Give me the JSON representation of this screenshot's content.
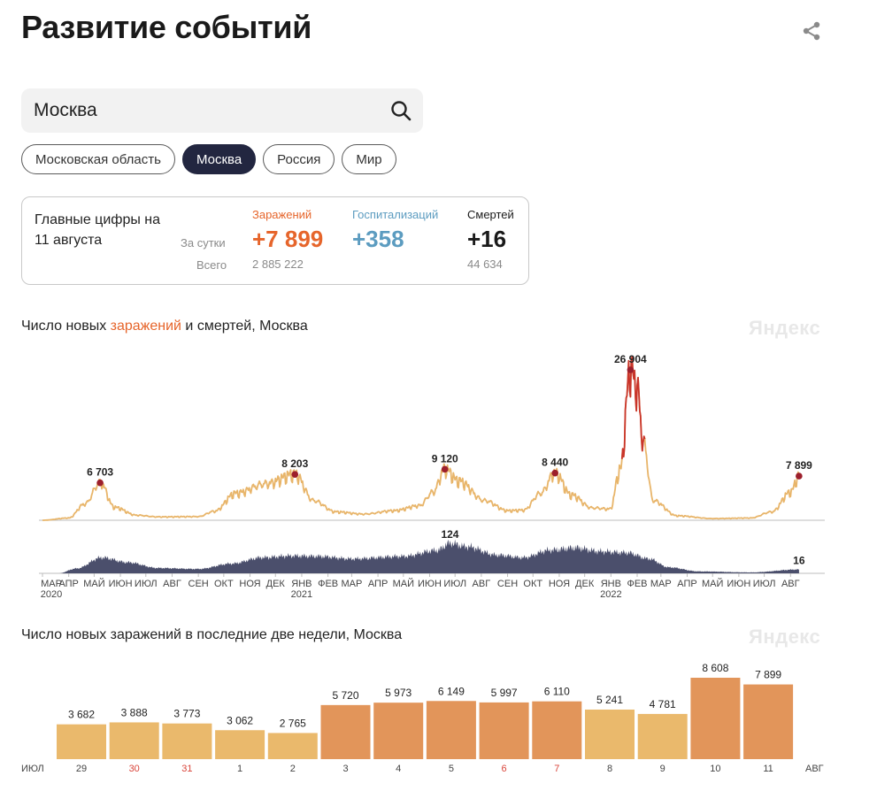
{
  "header": {
    "title": "Развитие событий"
  },
  "search": {
    "value": "Москва"
  },
  "regions": [
    {
      "label": "Московская область",
      "active": false
    },
    {
      "label": "Москва",
      "active": true
    },
    {
      "label": "Россия",
      "active": false
    },
    {
      "label": "Мир",
      "active": false
    }
  ],
  "summary": {
    "title": "Главные цифры на 11 августа",
    "row_day_label": "За сутки",
    "row_total_label": "Всего",
    "cases": {
      "label": "Заражений",
      "day": "+7 899",
      "total": "2 885 222",
      "color": "#e6652b"
    },
    "hosp": {
      "label": "Госпитализаций",
      "day": "+358",
      "total": "",
      "color": "#5c9cc0"
    },
    "deaths": {
      "label": "Смертей",
      "day": "+16",
      "total": "44 634",
      "color": "#1a1a1a"
    }
  },
  "chart1": {
    "title_pre": "Число новых ",
    "title_hl": "заражений",
    "title_post": " и смертей, Москва",
    "watermark": "Яндекс"
  },
  "chart2": {
    "title": "Число новых заражений в последние две недели, Москва",
    "watermark": "Яндекс"
  },
  "chart_data": [
    {
      "type": "line",
      "title": "Число новых заражений и смертей, Москва",
      "x_unit": "month",
      "x_range": [
        "2020-03",
        "2022-08-11"
      ],
      "series": [
        {
          "name": "заражений",
          "color": "#e8b56a",
          "peak_color": "#c9342a",
          "keypoints": [
            [
              "2020-03-01",
              0
            ],
            [
              "2020-04-01",
              400
            ],
            [
              "2020-04-20",
              2900
            ],
            [
              "2020-05-08",
              6703
            ],
            [
              "2020-05-25",
              2300
            ],
            [
              "2020-06-20",
              900
            ],
            [
              "2020-07-15",
              600
            ],
            [
              "2020-09-01",
              650
            ],
            [
              "2020-09-20",
              1600
            ],
            [
              "2020-10-15",
              4800
            ],
            [
              "2020-11-20",
              6500
            ],
            [
              "2020-12-24",
              8203
            ],
            [
              "2021-01-15",
              3500
            ],
            [
              "2021-02-10",
              1500
            ],
            [
              "2021-03-15",
              1100
            ],
            [
              "2021-04-20",
              1700
            ],
            [
              "2021-05-20",
              2600
            ],
            [
              "2021-06-05",
              5000
            ],
            [
              "2021-06-19",
              9120
            ],
            [
              "2021-07-05",
              7000
            ],
            [
              "2021-08-05",
              3500
            ],
            [
              "2021-09-01",
              1700
            ],
            [
              "2021-09-20",
              1800
            ],
            [
              "2021-10-10",
              4800
            ],
            [
              "2021-10-27",
              8440
            ],
            [
              "2021-11-15",
              4500
            ],
            [
              "2021-12-10",
              2200
            ],
            [
              "2021-12-31",
              2000
            ],
            [
              "2022-01-12",
              9000
            ],
            [
              "2022-01-24",
              26904
            ],
            [
              "2022-02-01",
              23500
            ],
            [
              "2022-02-08",
              14000
            ],
            [
              "2022-02-20",
              3500
            ],
            [
              "2022-03-20",
              800
            ],
            [
              "2022-05-01",
              300
            ],
            [
              "2022-06-15",
              400
            ],
            [
              "2022-07-10",
              1500
            ],
            [
              "2022-08-01",
              5000
            ],
            [
              "2022-08-11",
              7899
            ]
          ],
          "peaks": [
            {
              "date": "2020-05-08",
              "value": 6703,
              "label": "6 703"
            },
            {
              "date": "2020-12-24",
              "value": 8203,
              "label": "8 203"
            },
            {
              "date": "2021-06-19",
              "value": 9120,
              "label": "9 120"
            },
            {
              "date": "2021-10-27",
              "value": 8440,
              "label": "8 440"
            },
            {
              "date": "2022-01-24",
              "value": 26904,
              "label": "26 904"
            },
            {
              "date": "2022-08-11",
              "value": 7899,
              "label": "7 899"
            }
          ]
        },
        {
          "name": "смертей",
          "color": "#4b4f6c",
          "keypoints": [
            [
              "2020-03-20",
              0
            ],
            [
              "2020-04-10",
              20
            ],
            [
              "2020-05-10",
              65
            ],
            [
              "2020-06-10",
              45
            ],
            [
              "2020-07-15",
              22
            ],
            [
              "2020-09-01",
              18
            ],
            [
              "2020-10-10",
              40
            ],
            [
              "2020-11-15",
              65
            ],
            [
              "2020-12-20",
              72
            ],
            [
              "2021-01-20",
              70
            ],
            [
              "2021-03-01",
              60
            ],
            [
              "2021-05-01",
              70
            ],
            [
              "2021-06-10",
              95
            ],
            [
              "2021-06-25",
              124
            ],
            [
              "2021-07-15",
              110
            ],
            [
              "2021-08-20",
              75
            ],
            [
              "2021-09-20",
              65
            ],
            [
              "2021-10-20",
              95
            ],
            [
              "2021-11-20",
              105
            ],
            [
              "2021-12-20",
              90
            ],
            [
              "2022-01-20",
              85
            ],
            [
              "2022-02-15",
              60
            ],
            [
              "2022-03-10",
              25
            ],
            [
              "2022-04-15",
              8
            ],
            [
              "2022-06-15",
              4
            ],
            [
              "2022-08-11",
              16
            ]
          ],
          "peaks": [
            {
              "date": "2021-06-25",
              "value": 124,
              "label": "124"
            },
            {
              "date": "2022-08-11",
              "value": 16,
              "label": "16"
            }
          ]
        }
      ],
      "x_ticks": [
        {
          "label": "МАР",
          "date": "2020-03-01",
          "year": "2020"
        },
        {
          "label": "АПР",
          "date": "2020-04-01"
        },
        {
          "label": "МАЙ",
          "date": "2020-05-01"
        },
        {
          "label": "ИЮН",
          "date": "2020-06-01"
        },
        {
          "label": "ИЮЛ",
          "date": "2020-07-01"
        },
        {
          "label": "АВГ",
          "date": "2020-08-01"
        },
        {
          "label": "СЕН",
          "date": "2020-09-01"
        },
        {
          "label": "ОКТ",
          "date": "2020-10-01"
        },
        {
          "label": "НОЯ",
          "date": "2020-11-01"
        },
        {
          "label": "ДЕК",
          "date": "2020-12-01"
        },
        {
          "label": "ЯНВ",
          "date": "2021-01-01",
          "year": "2021"
        },
        {
          "label": "ФЕВ",
          "date": "2021-02-01"
        },
        {
          "label": "МАР",
          "date": "2021-03-01"
        },
        {
          "label": "АПР",
          "date": "2021-04-01"
        },
        {
          "label": "МАЙ",
          "date": "2021-05-01"
        },
        {
          "label": "ИЮН",
          "date": "2021-06-01"
        },
        {
          "label": "ИЮЛ",
          "date": "2021-07-01"
        },
        {
          "label": "АВГ",
          "date": "2021-08-01"
        },
        {
          "label": "СЕН",
          "date": "2021-09-01"
        },
        {
          "label": "ОКТ",
          "date": "2021-10-01"
        },
        {
          "label": "НОЯ",
          "date": "2021-11-01"
        },
        {
          "label": "ДЕК",
          "date": "2021-12-01"
        },
        {
          "label": "ЯНВ",
          "date": "2022-01-01",
          "year": "2022"
        },
        {
          "label": "ФЕВ",
          "date": "2022-02-01"
        },
        {
          "label": "МАР",
          "date": "2022-03-01"
        },
        {
          "label": "АПР",
          "date": "2022-04-01"
        },
        {
          "label": "МАЙ",
          "date": "2022-05-01"
        },
        {
          "label": "ИЮН",
          "date": "2022-06-01"
        },
        {
          "label": "ИЮЛ",
          "date": "2022-07-01"
        },
        {
          "label": "АВГ",
          "date": "2022-08-01"
        }
      ]
    },
    {
      "type": "bar",
      "title": "Число новых заражений в последние две недели, Москва",
      "month_start": "ИЮЛ",
      "month_end": "АВГ",
      "categories": [
        "29",
        "30",
        "31",
        "1",
        "2",
        "3",
        "4",
        "5",
        "6",
        "7",
        "8",
        "9",
        "10",
        "11"
      ],
      "weekend": [
        false,
        true,
        true,
        false,
        false,
        false,
        false,
        false,
        true,
        true,
        false,
        false,
        false,
        false
      ],
      "values": [
        3682,
        3888,
        3773,
        3062,
        2765,
        5720,
        5973,
        6149,
        5997,
        6110,
        5241,
        4781,
        8608,
        7899
      ],
      "labels": [
        "3 682",
        "3 888",
        "3 773",
        "3 062",
        "2 765",
        "5 720",
        "5 973",
        "6 149",
        "5 997",
        "6 110",
        "5 241",
        "4 781",
        "8 608",
        "7 899"
      ],
      "colors": [
        "#eab96c",
        "#eab96c",
        "#eab96c",
        "#eab96c",
        "#eab96c",
        "#e2955a",
        "#e2955a",
        "#e2955a",
        "#e2955a",
        "#e2955a",
        "#eab96c",
        "#eab96c",
        "#e2955a",
        "#e2955a"
      ],
      "weekend_color": "#d9453b",
      "ylim": [
        0,
        9000
      ]
    }
  ]
}
